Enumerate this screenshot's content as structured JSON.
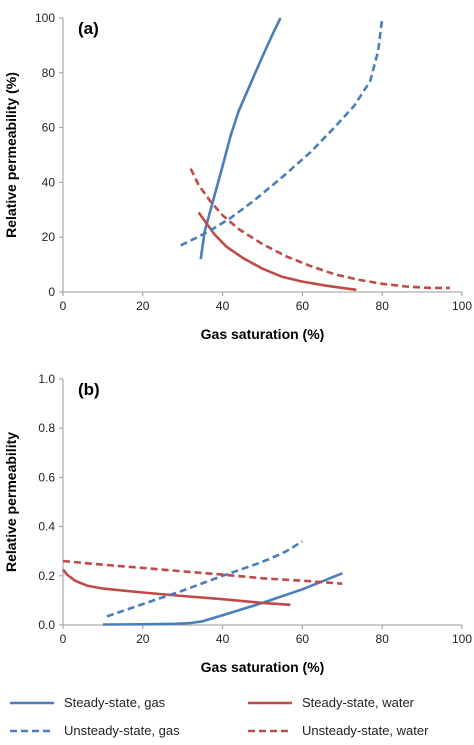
{
  "colors": {
    "gas": "#4a7ebb",
    "water": "#be4b48"
  },
  "chart_data": [
    {
      "type": "line",
      "panel_label": "(a)",
      "xlabel": "Gas saturation (%)",
      "ylabel": "Relative permeability (%)",
      "xlim": [
        0,
        100
      ],
      "ylim": [
        0,
        100
      ],
      "x_ticks": [
        "0",
        "20",
        "40",
        "60",
        "80",
        "100"
      ],
      "y_ticks": [
        "0",
        "20",
        "40",
        "60",
        "80",
        "100"
      ],
      "grid": false,
      "series": [
        {
          "name": "Steady-state, gas",
          "color": "gas",
          "dash": false,
          "points": [
            [
              34.5,
              12
            ],
            [
              35.5,
              22
            ],
            [
              37,
              30
            ],
            [
              38.5,
              38
            ],
            [
              40,
              46
            ],
            [
              42,
              57
            ],
            [
              44,
              66
            ],
            [
              47,
              76
            ],
            [
              50,
              86
            ],
            [
              52.5,
              94
            ],
            [
              54.5,
              100
            ]
          ]
        },
        {
          "name": "Steady-state, water",
          "color": "water",
          "dash": false,
          "points": [
            [
              34,
              29
            ],
            [
              36,
              25
            ],
            [
              38,
              21
            ],
            [
              41,
              16.5
            ],
            [
              45,
              12.5
            ],
            [
              50,
              8.5
            ],
            [
              55,
              5.5
            ],
            [
              60,
              3.8
            ],
            [
              66,
              2.3
            ],
            [
              70,
              1.5
            ],
            [
              73.5,
              0.8
            ]
          ]
        },
        {
          "name": "Unsteady-state, gas",
          "color": "gas",
          "dash": true,
          "points": [
            [
              29.5,
              17
            ],
            [
              33,
              19.5
            ],
            [
              37,
              22.5
            ],
            [
              42,
              27
            ],
            [
              48,
              33.5
            ],
            [
              55,
              42
            ],
            [
              62,
              51
            ],
            [
              68,
              60
            ],
            [
              73,
              68
            ],
            [
              77,
              77
            ],
            [
              79,
              88
            ],
            [
              80,
              100
            ]
          ]
        },
        {
          "name": "Unsteady-state, water",
          "color": "water",
          "dash": true,
          "points": [
            [
              32,
              45
            ],
            [
              34,
              39
            ],
            [
              37,
              33
            ],
            [
              40,
              28
            ],
            [
              44,
              23
            ],
            [
              50,
              17.5
            ],
            [
              56,
              13
            ],
            [
              62,
              9.5
            ],
            [
              68,
              6.5
            ],
            [
              74,
              4.5
            ],
            [
              80,
              3
            ],
            [
              86,
              2
            ],
            [
              92,
              1.5
            ],
            [
              97,
              1.5
            ]
          ]
        }
      ]
    },
    {
      "type": "line",
      "panel_label": "(b)",
      "xlabel": "Gas saturation (%)",
      "ylabel": "Relative permeability",
      "xlim": [
        0,
        100
      ],
      "ylim": [
        0,
        1.0
      ],
      "x_ticks": [
        "0",
        "20",
        "40",
        "60",
        "80",
        "100"
      ],
      "y_ticks": [
        "0.0",
        "0.2",
        "0.4",
        "0.6",
        "0.8",
        "1.0"
      ],
      "grid": false,
      "series": [
        {
          "name": "Steady-state, gas",
          "color": "gas",
          "dash": false,
          "points": [
            [
              10,
              0.002
            ],
            [
              20,
              0.003
            ],
            [
              28,
              0.005
            ],
            [
              32,
              0.008
            ],
            [
              35,
              0.015
            ],
            [
              40,
              0.04
            ],
            [
              50,
              0.09
            ],
            [
              60,
              0.145
            ],
            [
              70,
              0.21
            ]
          ]
        },
        {
          "name": "Steady-state, water",
          "color": "water",
          "dash": false,
          "points": [
            [
              0,
              0.225
            ],
            [
              1,
              0.205
            ],
            [
              3,
              0.18
            ],
            [
              6,
              0.16
            ],
            [
              10,
              0.148
            ],
            [
              20,
              0.132
            ],
            [
              30,
              0.118
            ],
            [
              40,
              0.105
            ],
            [
              50,
              0.09
            ],
            [
              57,
              0.082
            ]
          ]
        },
        {
          "name": "Unsteady-state, gas",
          "color": "gas",
          "dash": true,
          "points": [
            [
              11,
              0.035
            ],
            [
              20,
              0.085
            ],
            [
              30,
              0.14
            ],
            [
              40,
              0.2
            ],
            [
              48,
              0.245
            ],
            [
              52,
              0.27
            ],
            [
              56,
              0.3
            ],
            [
              60,
              0.34
            ]
          ]
        },
        {
          "name": "Unsteady-state, water",
          "color": "water",
          "dash": true,
          "points": [
            [
              0,
              0.26
            ],
            [
              10,
              0.245
            ],
            [
              20,
              0.232
            ],
            [
              30,
              0.218
            ],
            [
              40,
              0.205
            ],
            [
              50,
              0.19
            ],
            [
              60,
              0.18
            ],
            [
              70,
              0.168
            ]
          ]
        }
      ]
    }
  ],
  "legend": {
    "placement": "bottom",
    "items": [
      {
        "label": "Steady-state, gas",
        "color": "gas",
        "dash": false
      },
      {
        "label": "Steady-state, water",
        "color": "water",
        "dash": false
      },
      {
        "label": "Unsteady-state, gas",
        "color": "gas",
        "dash": true
      },
      {
        "label": "Unsteady-state, water",
        "color": "water",
        "dash": true
      }
    ]
  }
}
